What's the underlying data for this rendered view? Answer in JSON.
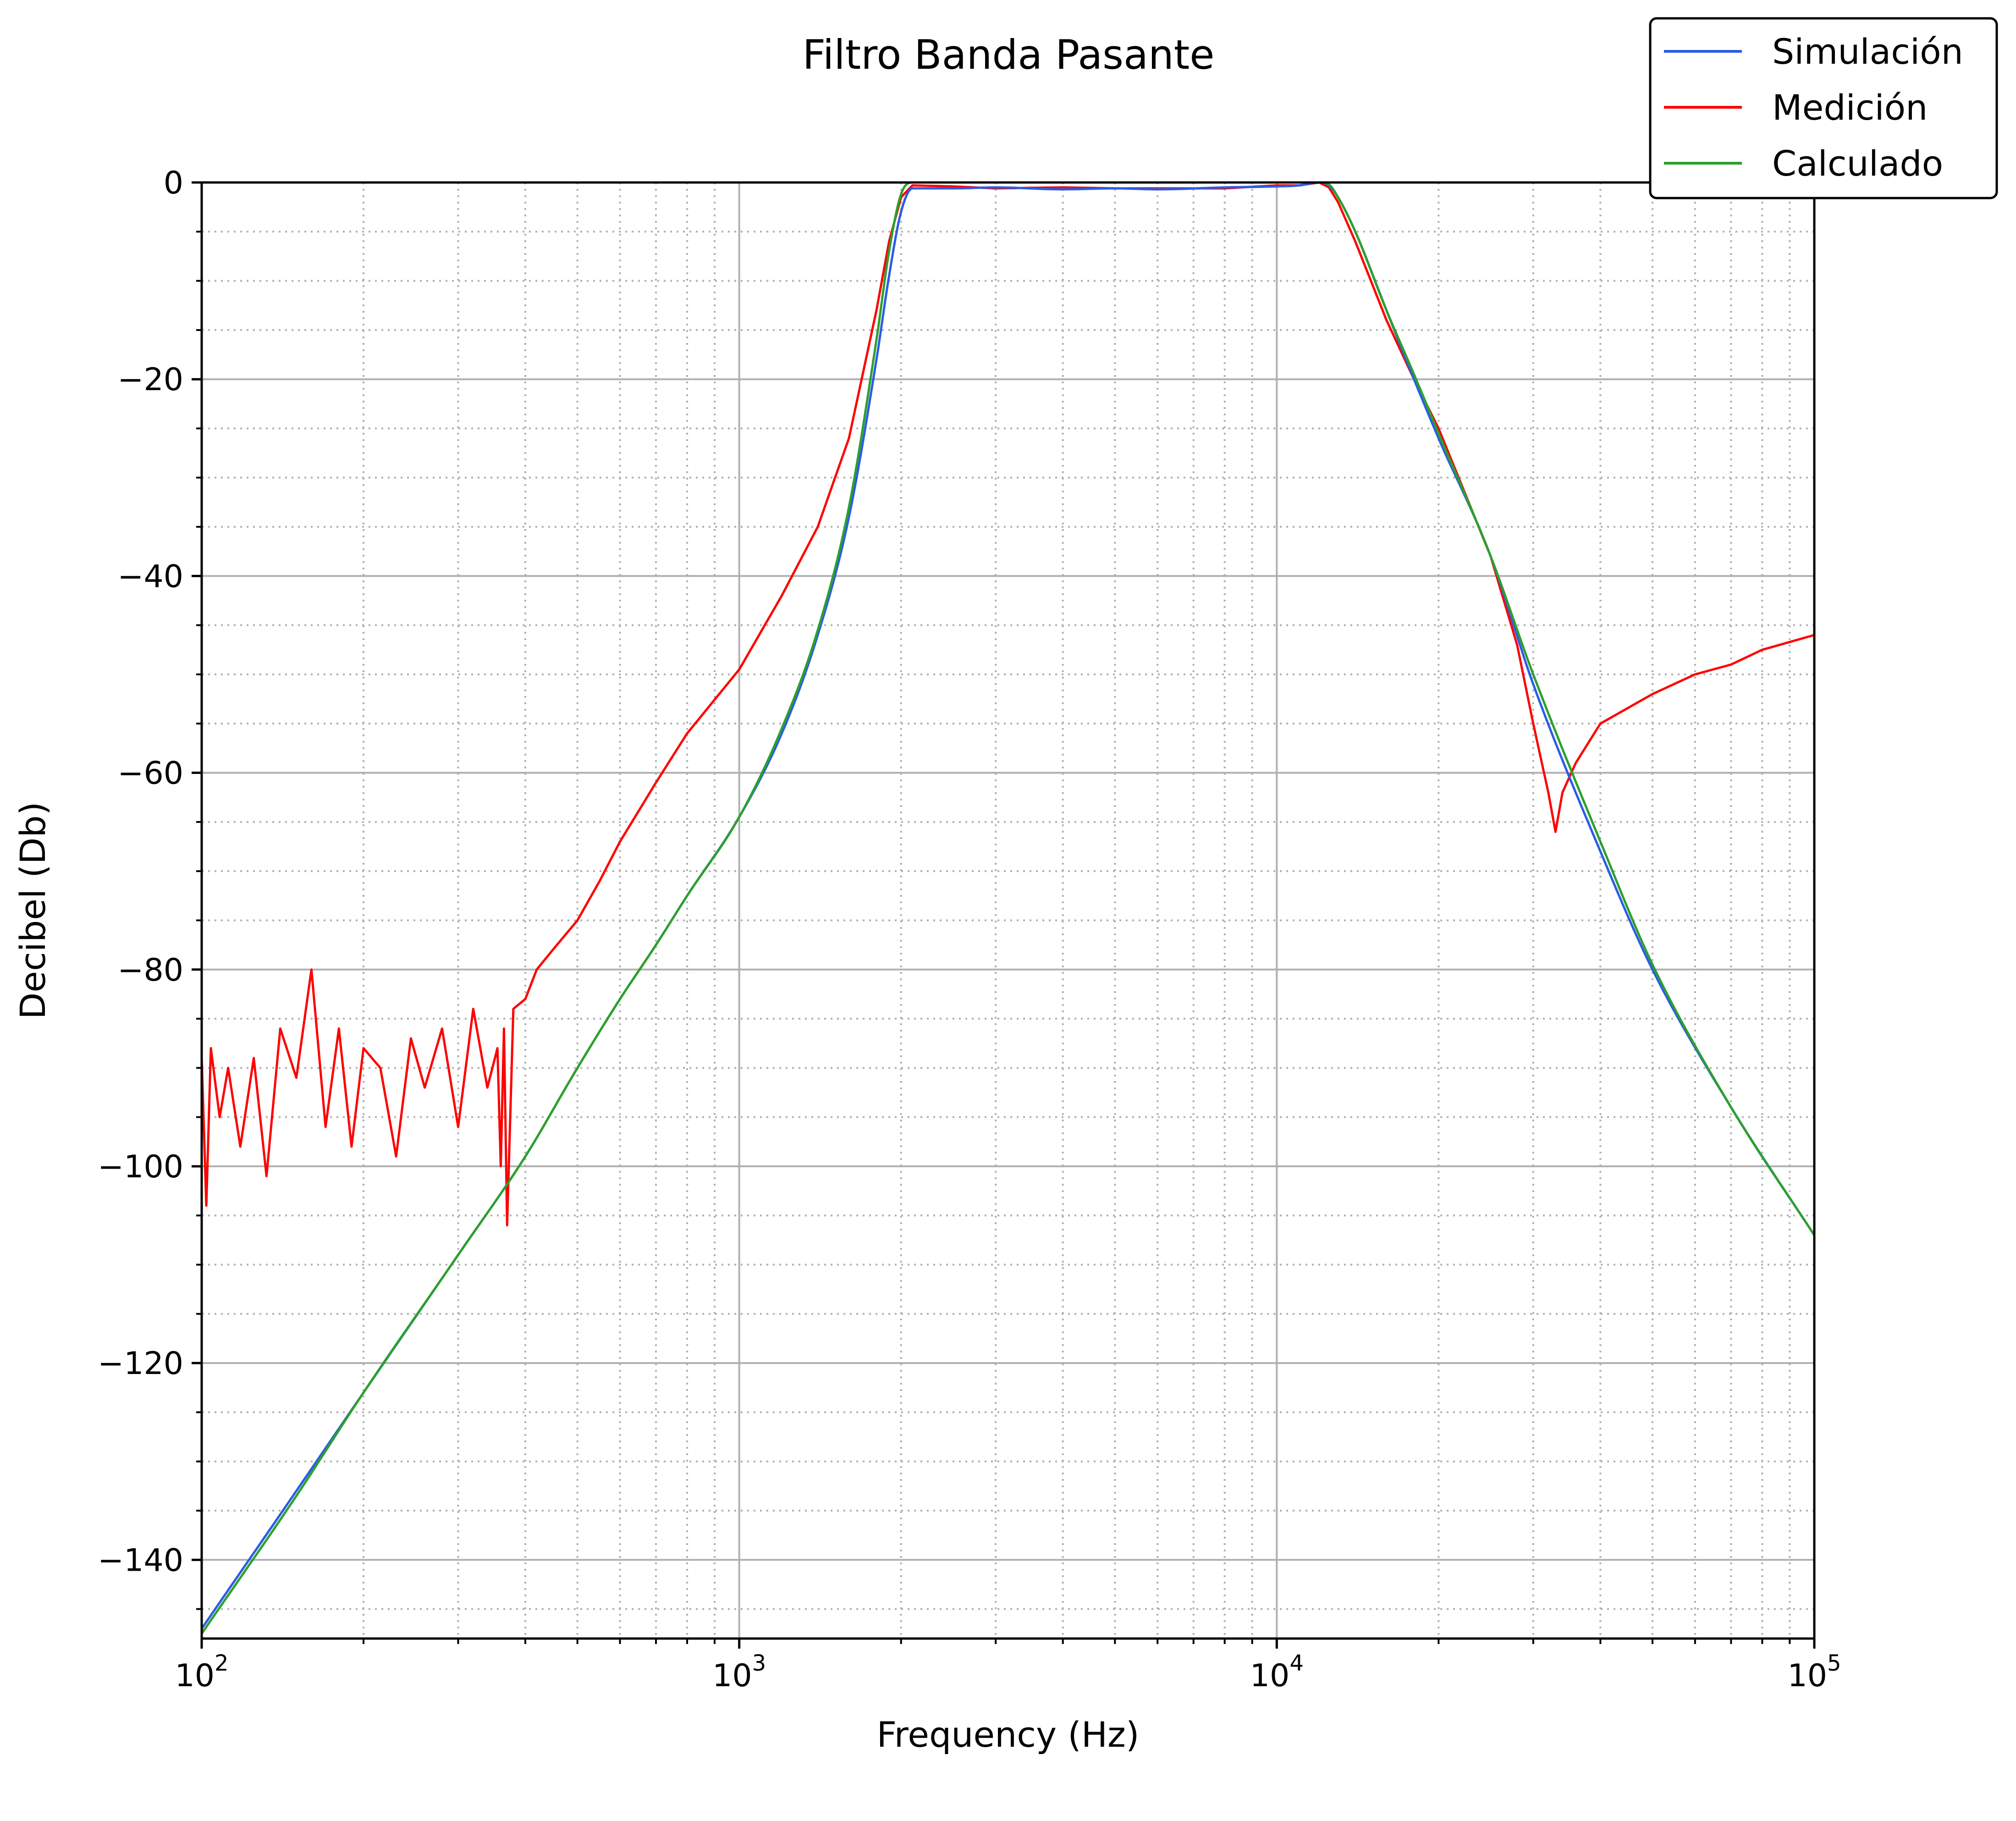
{
  "chart_data": {
    "type": "line",
    "title": "Filtro Banda Pasante",
    "xlabel": "Frequency (Hz)",
    "ylabel": "Decibel (Db)",
    "xscale": "log",
    "xlim": [
      100,
      100000
    ],
    "ylim": [
      -148,
      0
    ],
    "x_ticks": [
      {
        "value": 100,
        "base": "10",
        "exp": "2"
      },
      {
        "value": 1000,
        "base": "10",
        "exp": "3"
      },
      {
        "value": 10000,
        "base": "10",
        "exp": "4"
      },
      {
        "value": 100000,
        "base": "10",
        "exp": "5"
      }
    ],
    "y_ticks": [
      {
        "value": 0,
        "label": "0"
      },
      {
        "value": -20,
        "label": "−20"
      },
      {
        "value": -40,
        "label": "−40"
      },
      {
        "value": -60,
        "label": "−60"
      },
      {
        "value": -80,
        "label": "−80"
      },
      {
        "value": -100,
        "label": "−100"
      },
      {
        "value": -120,
        "label": "−120"
      },
      {
        "value": -140,
        "label": "−140"
      }
    ],
    "grid": {
      "major": true,
      "minor": true,
      "minor_style": "dotted"
    },
    "legend": {
      "position": "top-right"
    },
    "series": [
      {
        "name": "Simulación",
        "color": "#2b5ce6",
        "x": [
          100,
          150,
          200,
          300,
          400,
          500,
          600,
          700,
          800,
          1000,
          1200,
          1400,
          1600,
          1800,
          1900,
          2000,
          2100,
          2500,
          3000,
          4000,
          5000,
          6000,
          8000,
          10000,
          11000,
          12000,
          12500,
          13000,
          14000,
          16000,
          18000,
          20000,
          25000,
          30000,
          40000,
          50000,
          70000,
          100000
        ],
        "y": [
          -147,
          -133,
          -123,
          -109,
          -99,
          -90,
          -83,
          -77.5,
          -72.5,
          -64.5,
          -56,
          -46,
          -34,
          -18,
          -9.5,
          -3,
          -0.6,
          -0.6,
          -0.5,
          -0.7,
          -0.6,
          -0.7,
          -0.5,
          -0.4,
          -0.3,
          0,
          -0.3,
          -1.5,
          -5,
          -13,
          -20,
          -26,
          -38,
          -51,
          -68,
          -80,
          -94,
          -107
        ]
      },
      {
        "name": "Medición",
        "color": "#ff0000",
        "x": [
          100,
          102,
          104,
          108,
          112,
          118,
          125,
          132,
          140,
          150,
          160,
          170,
          180,
          190,
          200,
          215,
          230,
          245,
          260,
          280,
          300,
          320,
          340,
          355,
          360,
          365,
          370,
          380,
          400,
          420,
          450,
          500,
          550,
          600,
          700,
          800,
          1000,
          1200,
          1400,
          1600,
          1800,
          1900,
          2000,
          2100,
          2500,
          3000,
          4000,
          5000,
          6000,
          8000,
          10000,
          11000,
          12000,
          12500,
          13000,
          14000,
          16000,
          18000,
          20000,
          25000,
          28000,
          30000,
          32000,
          33000,
          34000,
          36000,
          40000,
          50000,
          60000,
          70000,
          80000,
          100000
        ],
        "y": [
          -89,
          -104,
          -88,
          -95,
          -90,
          -98,
          -89,
          -101,
          -86,
          -91,
          -80,
          -96,
          -86,
          -98,
          -88,
          -90,
          -99,
          -87,
          -92,
          -86,
          -96,
          -84,
          -92,
          -88,
          -100,
          -86,
          -106,
          -84,
          -83,
          -80,
          -78,
          -75,
          -71,
          -67,
          -61,
          -56,
          -49.5,
          -42,
          -35,
          -26,
          -13,
          -6,
          -1.5,
          -0.3,
          -0.4,
          -0.6,
          -0.5,
          -0.6,
          -0.6,
          -0.6,
          -0.3,
          -0.3,
          0,
          -0.5,
          -2,
          -6,
          -14,
          -20,
          -25,
          -38,
          -47,
          -55,
          -62,
          -66,
          -62,
          -59,
          -55,
          -52,
          -50,
          -49,
          -47.5,
          -46
        ]
      },
      {
        "name": "Calculado",
        "color": "#2ca02c",
        "x": [
          100,
          150,
          200,
          300,
          400,
          500,
          600,
          700,
          800,
          1000,
          1200,
          1400,
          1600,
          1800,
          1900,
          2000,
          2100,
          2500,
          3000,
          4000,
          5000,
          6000,
          8000,
          10000,
          11000,
          12000,
          12500,
          13000,
          14000,
          16000,
          18000,
          20000,
          25000,
          30000,
          40000,
          50000,
          70000,
          100000
        ],
        "y": [
          -147.5,
          -133.5,
          -123,
          -109,
          -99,
          -90,
          -83,
          -77.5,
          -72.5,
          -64.5,
          -55.5,
          -45.5,
          -33,
          -16,
          -7,
          -1.2,
          0,
          0,
          0,
          0,
          0,
          0,
          0,
          0,
          0,
          0,
          -0.2,
          -1.5,
          -5,
          -13,
          -19.5,
          -25.5,
          -38,
          -50,
          -67,
          -79.5,
          -94,
          -107
        ]
      }
    ]
  }
}
